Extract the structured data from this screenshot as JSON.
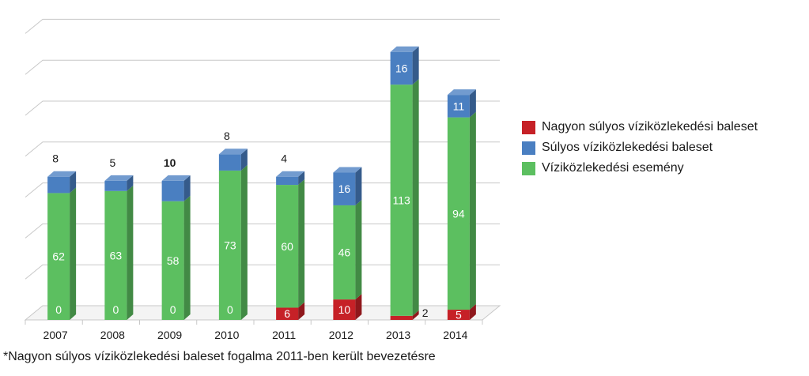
{
  "chart_data": {
    "type": "bar",
    "stacked": true,
    "style": "3d",
    "categories": [
      "2007",
      "2008",
      "2009",
      "2010",
      "2011",
      "2012",
      "2013",
      "2014"
    ],
    "series": [
      {
        "name": "Nagyon súlyos víziközlekedési baleset",
        "values": [
          0,
          0,
          0,
          0,
          6,
          10,
          2,
          5
        ],
        "color": "#c62127"
      },
      {
        "name": "Vízi­közlekedési esemény",
        "values": [
          62,
          63,
          58,
          73,
          60,
          46,
          113,
          94
        ],
        "color": "#5cbf60"
      },
      {
        "name": "Súlyos víziközlekedési baleset",
        "values": [
          8,
          5,
          10,
          8,
          4,
          16,
          16,
          11
        ],
        "color": "#4a7fc1"
      }
    ],
    "bar_labels": {
      "red": [
        "",
        "",
        "",
        "",
        "6",
        "10",
        "2",
        "5"
      ],
      "green_zero": [
        "0",
        "0",
        "0",
        "0",
        "",
        "",
        "",
        ""
      ],
      "green": [
        "62",
        "63",
        "58",
        "73",
        "60",
        "46",
        "113",
        "94"
      ],
      "blue": [
        "8",
        "5",
        "10",
        "8",
        "4",
        "16",
        "16",
        "11"
      ]
    },
    "ylim": [
      0,
      140
    ],
    "grid": true,
    "legend_placement": "right"
  },
  "legend": {
    "items": [
      {
        "label": "Nagyon súlyos víziközlekedési baleset",
        "color": "#c62127"
      },
      {
        "label": "Súlyos víziközlekedési baleset",
        "color": "#4a7fc1"
      },
      {
        "label": "Víziközlekedési esemény",
        "color": "#5cbf60"
      }
    ]
  },
  "footnote": "*Nagyon súlyos víziközlekedési baleset fogalma 2011-ben került bevezetésre"
}
